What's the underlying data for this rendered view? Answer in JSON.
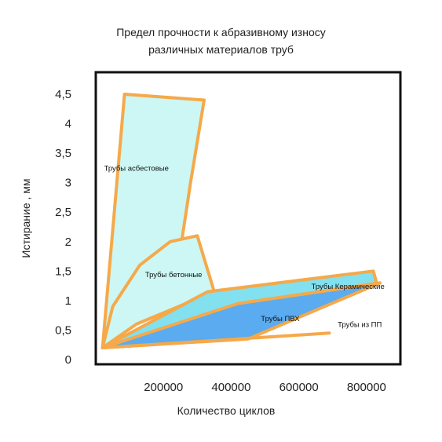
{
  "chart_data": {
    "type": "area",
    "title": "Предел прочности к абразивному износу",
    "subtitle": "различных материалов труб",
    "xlabel": "Количество циклов",
    "ylabel": "Истирание , мм",
    "xlim": [
      0,
      900000
    ],
    "ylim": [
      0,
      4.5
    ],
    "x_ticks": [
      "200000",
      "400000",
      "600000",
      "800000"
    ],
    "x_tick_values": [
      200000,
      400000,
      600000,
      800000
    ],
    "y_ticks": [
      "0",
      "0,5",
      "1",
      "1,5",
      "2",
      "2,5",
      "3",
      "3,5",
      "4",
      "4,5"
    ],
    "y_tick_values": [
      0,
      0.5,
      1,
      1.5,
      2,
      2.5,
      3,
      3.5,
      4,
      4.5
    ],
    "grid": false,
    "colors": {
      "outline": "#f5a94a",
      "light_fill": "#ccf7f4",
      "ceramic_fill": "#82e0ef",
      "pvc_fill": "#5aabf0"
    },
    "series": [
      {
        "name": "Трубы асбестовые",
        "label_at": [
          120000,
          3.2
        ],
        "points": [
          [
            20000,
            0.2
          ],
          [
            85000,
            4.5
          ],
          [
            320000,
            4.4
          ],
          [
            280000,
            3.0
          ],
          [
            255000,
            2.05
          ],
          [
            130000,
            1.5
          ],
          [
            50000,
            0.7
          ],
          [
            20000,
            0.2
          ]
        ]
      },
      {
        "name": "Трубы бетонные",
        "label_at": [
          230000,
          1.4
        ],
        "points": [
          [
            20000,
            0.2
          ],
          [
            50000,
            0.9
          ],
          [
            130000,
            1.6
          ],
          [
            220000,
            2.0
          ],
          [
            300000,
            2.1
          ],
          [
            350000,
            1.15
          ],
          [
            120000,
            0.6
          ],
          [
            20000,
            0.2
          ]
        ]
      },
      {
        "name": "Трубы Керамические",
        "label_at": [
          745000,
          1.2
        ],
        "points": [
          [
            20000,
            0.2
          ],
          [
            330000,
            1.15
          ],
          [
            820000,
            1.5
          ],
          [
            830000,
            1.3
          ],
          [
            20000,
            0.2
          ]
        ]
      },
      {
        "name": "Трубы ПВХ",
        "label_at": [
          545000,
          0.65
        ],
        "points": [
          [
            20000,
            0.2
          ],
          [
            420000,
            0.95
          ],
          [
            840000,
            1.3
          ],
          [
            450000,
            0.35
          ],
          [
            20000,
            0.2
          ]
        ]
      },
      {
        "name": "Трубы из ПП",
        "label_at": [
          780000,
          0.55
        ],
        "points": [
          [
            20000,
            0.2
          ],
          [
            690000,
            0.45
          ],
          [
            20000,
            0.2
          ]
        ]
      }
    ]
  }
}
